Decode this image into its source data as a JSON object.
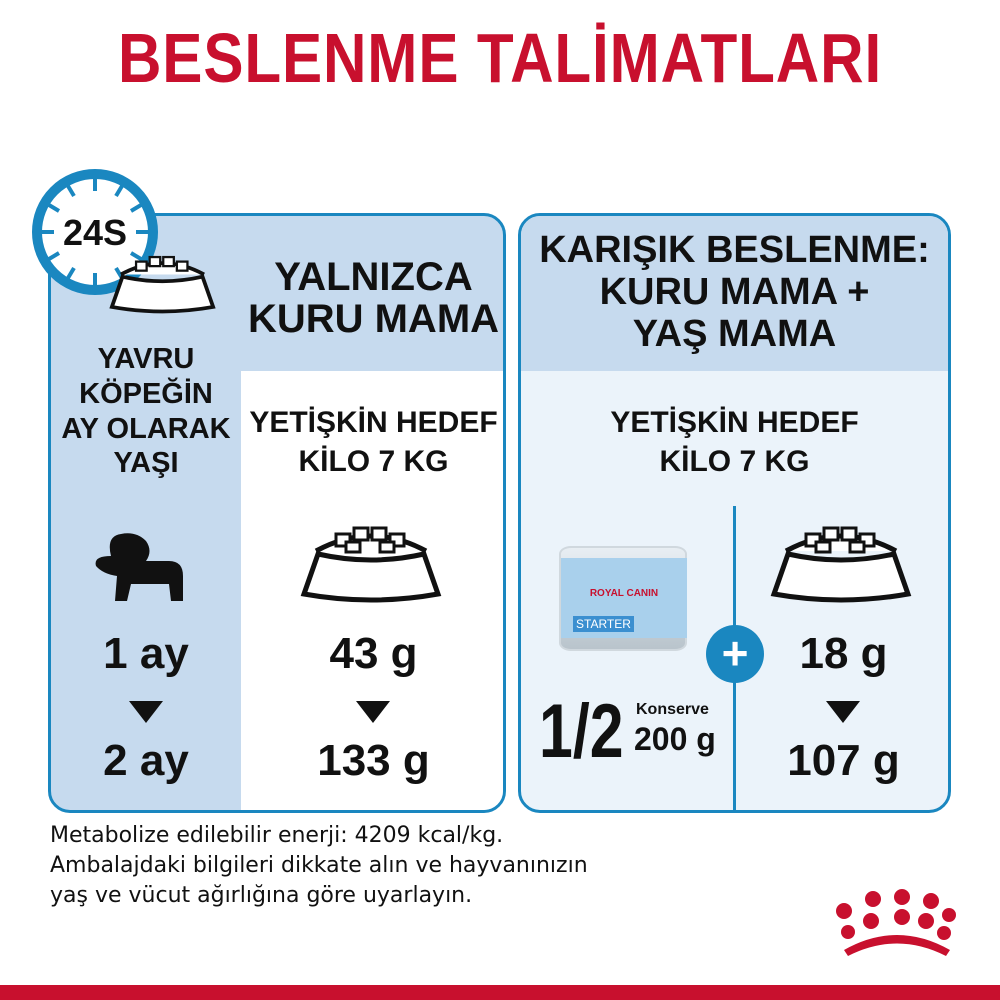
{
  "title": "BESLENME TALİMATLARI",
  "clock_label": "24S",
  "left": {
    "heading": [
      "YALNIZCA",
      "KURU MAMA"
    ],
    "age_label": [
      "YAVRU",
      "KÖPEĞİN",
      "AY OLARAK",
      "YAŞI"
    ],
    "target": [
      "YETİŞKİN HEDEF",
      "KİLO 7 KG"
    ],
    "age_from": "1 ay",
    "age_to": "2 ay",
    "dry_from": "43 g",
    "dry_to": "133 g"
  },
  "right": {
    "heading": [
      "KARIŞIK BESLENME:",
      "KURU MAMA +",
      "YAŞ MAMA"
    ],
    "target": [
      "YETİŞKİN HEDEF",
      "KİLO 7 KG"
    ],
    "can_brand": "ROYAL CANIN",
    "can_product": "STARTER",
    "can_fraction": "1/2",
    "can_unit": "Konserve",
    "can_weight": "200 g",
    "dry_from": "18 g",
    "dry_to": "107 g"
  },
  "footer": [
    "Metabolize edilebilir enerji: 4209 kcal/kg.",
    "Ambalajdaki bilgileri dikkate alın ve hayvanınızın",
    "yaş ve vücut ağırlığına göre uyarlayın."
  ],
  "colors": {
    "brand_red": "#c8102e",
    "accent_blue": "#1a87c0",
    "panel_blue": "#c6daee"
  }
}
